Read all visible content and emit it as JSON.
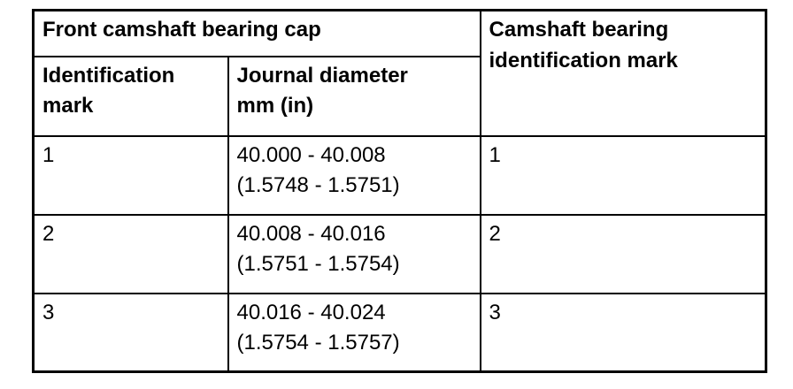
{
  "colors": {
    "background": "#ffffff",
    "border": "#000000",
    "text": "#000000"
  },
  "table": {
    "header": {
      "front_cap": "Front camshaft bearing cap",
      "camshaft_mark": "Camshaft bearing\nidentification mark",
      "identification_mark": "Identification\nmark",
      "journal_diameter": "Journal diameter\nmm (in)"
    },
    "rows": [
      {
        "id_mark": "1",
        "journal_diameter": "40.000 - 40.008\n(1.5748 - 1.5751)",
        "bearing_mark": "1"
      },
      {
        "id_mark": "2",
        "journal_diameter": "40.008 - 40.016\n(1.5751 - 1.5754)",
        "bearing_mark": "2"
      },
      {
        "id_mark": "3",
        "journal_diameter": "40.016 - 40.024\n(1.5754 - 1.5757)",
        "bearing_mark": "3"
      }
    ]
  }
}
